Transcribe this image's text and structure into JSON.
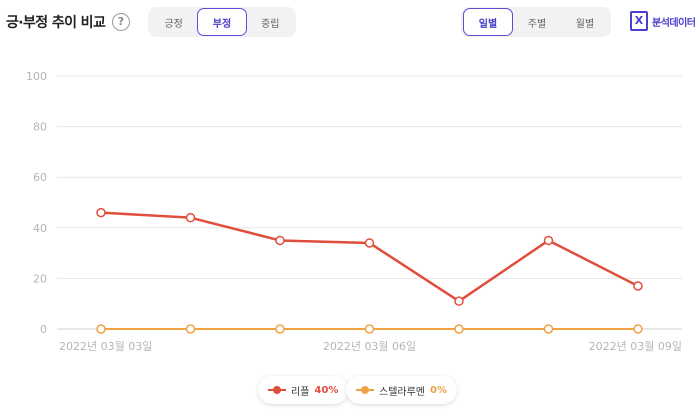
{
  "header": {
    "title": "긍·부정 추이 비교",
    "help_symbol": "?",
    "sentiment_tabs": [
      {
        "label": "긍정",
        "active": false
      },
      {
        "label": "부정",
        "active": true
      },
      {
        "label": "중립",
        "active": false
      }
    ],
    "period_tabs": [
      {
        "label": "일별",
        "active": true
      },
      {
        "label": "주별",
        "active": false
      },
      {
        "label": "월별",
        "active": false
      }
    ],
    "export": {
      "icon": "excel-icon",
      "icon_glyph": "X",
      "label": "분석데이터"
    }
  },
  "colors": {
    "accent": "#4b3fd1",
    "series1": "#e04e3c",
    "series2": "#f0a344",
    "grid": "#e6e6e6"
  },
  "chart_data": {
    "type": "line",
    "ylim": [
      0,
      100
    ],
    "yticks": [
      0,
      20,
      40,
      60,
      80,
      100
    ],
    "x": [
      "2022-03-03",
      "2022-03-04",
      "2022-03-05",
      "2022-03-06",
      "2022-03-07",
      "2022-03-08",
      "2022-03-09"
    ],
    "xtick_labels": [
      {
        "index": 0,
        "label": "2022년 03월 03일"
      },
      {
        "index": 3,
        "label": "2022년 03월 06일"
      },
      {
        "index": 6,
        "label": "2022년 03월 09일"
      }
    ],
    "series": [
      {
        "name": "리플",
        "color": "#e04e3c",
        "values": [
          46,
          44,
          35,
          34,
          11,
          35,
          17
        ]
      },
      {
        "name": "스텔라루멘",
        "color": "#f0a344",
        "values": [
          0,
          0,
          0,
          0,
          0,
          0,
          0
        ]
      }
    ],
    "legend": [
      {
        "name": "리플",
        "share": "40%"
      },
      {
        "name": "스텔라루멘",
        "share": "0%"
      }
    ],
    "grid": true,
    "legend_position": "bottom"
  }
}
